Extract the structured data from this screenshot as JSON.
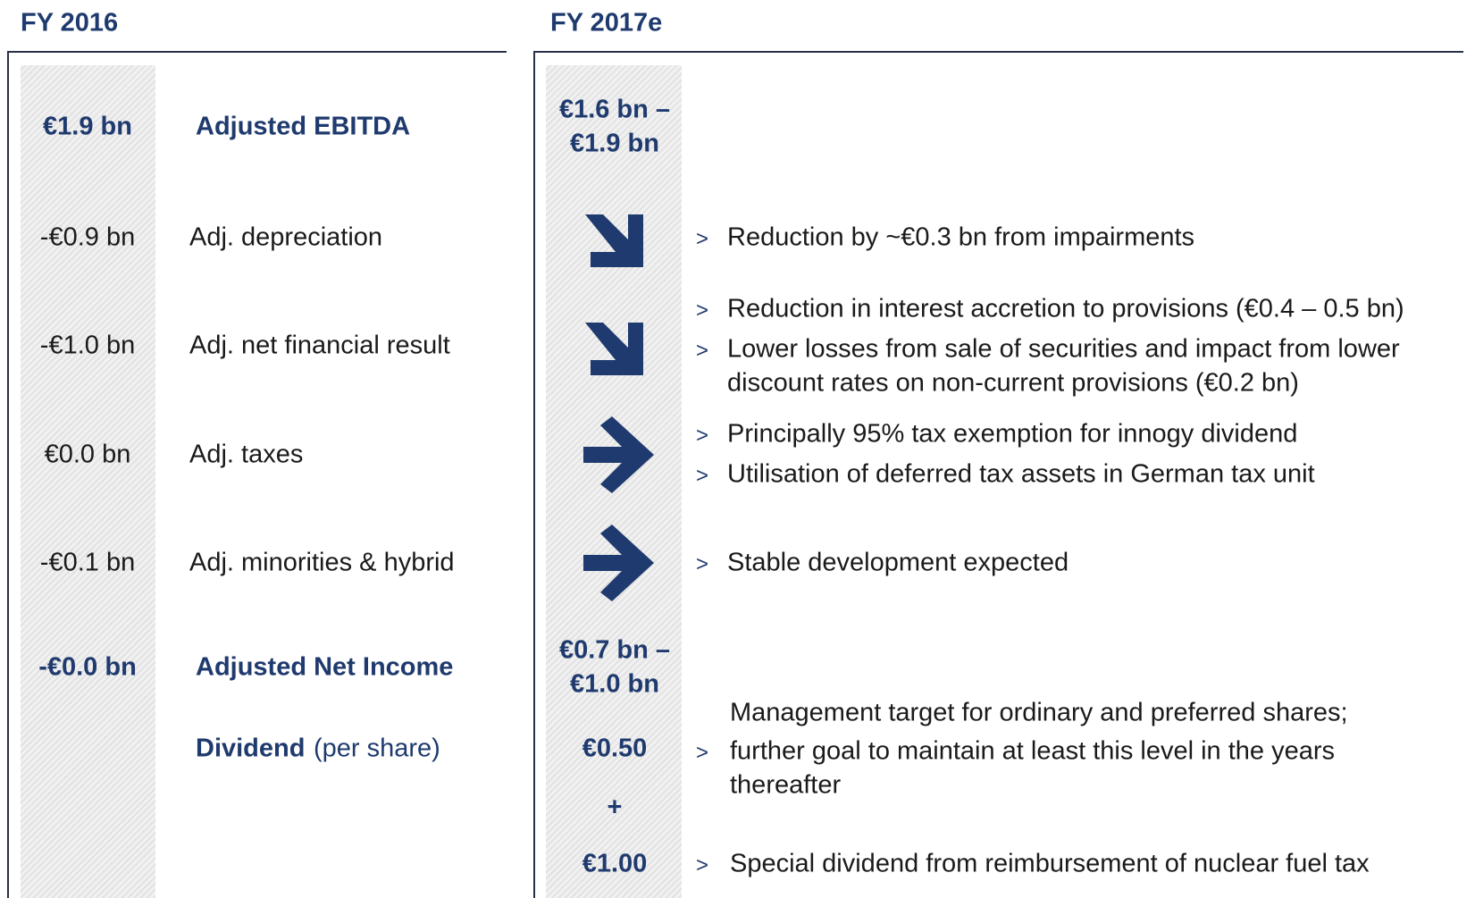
{
  "bullet": ">",
  "left": {
    "title": "FY 2016",
    "rows": [
      {
        "value": "€1.9 bn",
        "label": "Adjusted EBITDA"
      },
      {
        "value": "-€0.9 bn",
        "label": "Adj. depreciation"
      },
      {
        "value": "-€1.0 bn",
        "label": "Adj. net financial result"
      },
      {
        "value": "€0.0 bn",
        "label": "Adj. taxes"
      },
      {
        "value": "-€0.1 bn",
        "label": "Adj. minorities & hybrid"
      },
      {
        "value": "-€0.0 bn",
        "label": "Adjusted Net Income"
      }
    ],
    "dividend": {
      "label": "Dividend",
      "note": "(per share)"
    }
  },
  "right": {
    "title": "FY 2017e",
    "ebitda": [
      "€1.6 bn –",
      "€1.9 bn"
    ],
    "items": [
      {
        "bullets": [
          [
            "Reduction by ~€0.3 bn from impairments"
          ]
        ]
      },
      {
        "bullets": [
          [
            "Reduction in interest accretion to provisions (€0.4 – 0.5 bn)"
          ],
          [
            "Lower losses from sale of securities and impact from lower",
            "discount rates on non-current provisions (€0.2 bn)"
          ]
        ]
      },
      {
        "bullets": [
          [
            "Principally 95% tax exemption for innogy dividend"
          ],
          [
            "Utilisation of deferred tax assets in German tax unit"
          ]
        ]
      },
      {
        "bullets": [
          [
            "Stable development expected"
          ]
        ]
      }
    ],
    "net_income": [
      "€0.7 bn –",
      "€1.0 bn"
    ],
    "dividend": {
      "ordinary": "€0.50",
      "plus": "+",
      "special": "€1.00",
      "ordinary_note": [
        "Management target for ordinary and preferred shares;",
        "further goal to maintain at least this level in the years",
        "thereafter"
      ],
      "special_note": [
        "Special dividend from reimbursement of nuclear fuel tax"
      ]
    }
  }
}
